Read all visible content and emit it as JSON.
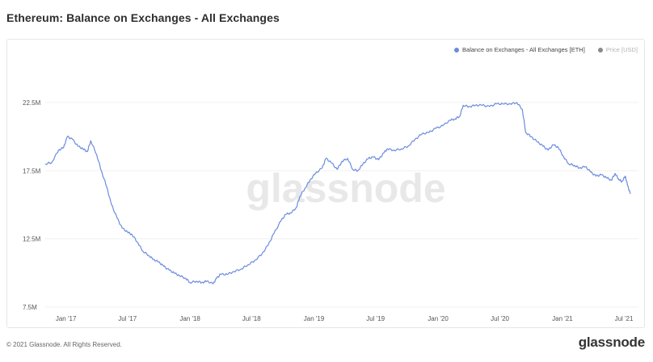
{
  "title": "Ethereum: Balance on Exchanges - All Exchanges",
  "footer": {
    "copyright": "© 2021 Glassnode. All Rights Reserved.",
    "logo": "glassnode"
  },
  "watermark": "glassnode",
  "colors": {
    "series": "#6b8cde",
    "price_dot": "#8a8a8a",
    "grid": "#f0f0f0",
    "tick": "#555555"
  },
  "chart_data": {
    "type": "line",
    "legend_position": "top-right",
    "grid": true,
    "series": [
      {
        "name": "Balance on Exchanges - All Exchanges [ETH]",
        "points": [
          [
            "2016-11-01",
            18.0
          ],
          [
            "2016-11-20",
            18.1
          ],
          [
            "2016-12-10",
            19.0
          ],
          [
            "2016-12-25",
            19.2
          ],
          [
            "2017-01-05",
            20.0
          ],
          [
            "2017-01-20",
            19.8
          ],
          [
            "2017-02-05",
            19.3
          ],
          [
            "2017-02-20",
            19.1
          ],
          [
            "2017-03-05",
            18.9
          ],
          [
            "2017-03-15",
            19.7
          ],
          [
            "2017-04-01",
            18.7
          ],
          [
            "2017-04-15",
            17.5
          ],
          [
            "2017-05-01",
            16.3
          ],
          [
            "2017-05-15",
            15.0
          ],
          [
            "2017-06-01",
            14.0
          ],
          [
            "2017-06-15",
            13.3
          ],
          [
            "2017-07-01",
            13.0
          ],
          [
            "2017-07-15",
            12.8
          ],
          [
            "2017-08-01",
            12.2
          ],
          [
            "2017-08-15",
            11.6
          ],
          [
            "2017-09-01",
            11.3
          ],
          [
            "2017-09-15",
            11.0
          ],
          [
            "2017-10-01",
            10.8
          ],
          [
            "2017-10-15",
            10.5
          ],
          [
            "2017-11-01",
            10.2
          ],
          [
            "2017-11-15",
            10.0
          ],
          [
            "2017-12-01",
            9.8
          ],
          [
            "2017-12-20",
            9.6
          ],
          [
            "2018-01-01",
            9.3
          ],
          [
            "2018-01-20",
            9.4
          ],
          [
            "2018-02-05",
            9.3
          ],
          [
            "2018-02-20",
            9.4
          ],
          [
            "2018-03-10",
            9.2
          ],
          [
            "2018-03-20",
            9.6
          ],
          [
            "2018-04-01",
            9.9
          ],
          [
            "2018-04-20",
            9.9
          ],
          [
            "2018-05-10",
            10.1
          ],
          [
            "2018-06-01",
            10.3
          ],
          [
            "2018-06-20",
            10.6
          ],
          [
            "2018-07-10",
            10.9
          ],
          [
            "2018-08-01",
            11.4
          ],
          [
            "2018-08-20",
            12.1
          ],
          [
            "2018-09-05",
            12.9
          ],
          [
            "2018-09-25",
            13.8
          ],
          [
            "2018-10-10",
            14.3
          ],
          [
            "2018-10-25",
            14.4
          ],
          [
            "2018-11-10",
            14.8
          ],
          [
            "2018-11-20",
            15.6
          ],
          [
            "2018-12-05",
            16.2
          ],
          [
            "2018-12-20",
            16.8
          ],
          [
            "2019-01-05",
            17.3
          ],
          [
            "2019-01-25",
            17.7
          ],
          [
            "2019-02-05",
            18.4
          ],
          [
            "2019-02-20",
            18.1
          ],
          [
            "2019-03-10",
            17.6
          ],
          [
            "2019-03-25",
            18.2
          ],
          [
            "2019-04-10",
            18.4
          ],
          [
            "2019-04-25",
            17.6
          ],
          [
            "2019-05-10",
            17.5
          ],
          [
            "2019-05-25",
            18.0
          ],
          [
            "2019-06-10",
            18.4
          ],
          [
            "2019-06-25",
            18.5
          ],
          [
            "2019-07-10",
            18.3
          ],
          [
            "2019-07-25",
            18.8
          ],
          [
            "2019-08-05",
            19.1
          ],
          [
            "2019-08-25",
            19.0
          ],
          [
            "2019-09-15",
            19.1
          ],
          [
            "2019-10-05",
            19.3
          ],
          [
            "2019-10-25",
            19.8
          ],
          [
            "2019-11-15",
            20.2
          ],
          [
            "2019-12-05",
            20.3
          ],
          [
            "2019-12-25",
            20.6
          ],
          [
            "2020-01-15",
            20.8
          ],
          [
            "2020-02-05",
            21.2
          ],
          [
            "2020-02-20",
            21.3
          ],
          [
            "2020-03-05",
            21.5
          ],
          [
            "2020-03-15",
            22.3
          ],
          [
            "2020-04-01",
            22.2
          ],
          [
            "2020-04-20",
            22.3
          ],
          [
            "2020-05-10",
            22.3
          ],
          [
            "2020-06-01",
            22.2
          ],
          [
            "2020-06-20",
            22.4
          ],
          [
            "2020-07-10",
            22.4
          ],
          [
            "2020-08-01",
            22.4
          ],
          [
            "2020-08-20",
            22.5
          ],
          [
            "2020-09-05",
            22.0
          ],
          [
            "2020-09-15",
            20.3
          ],
          [
            "2020-10-01",
            20.0
          ],
          [
            "2020-10-20",
            19.6
          ],
          [
            "2020-11-05",
            19.3
          ],
          [
            "2020-11-20",
            19.0
          ],
          [
            "2020-12-05",
            19.4
          ],
          [
            "2020-12-20",
            19.2
          ],
          [
            "2021-01-05",
            18.5
          ],
          [
            "2021-01-20",
            18.0
          ],
          [
            "2021-02-05",
            17.9
          ],
          [
            "2021-02-20",
            17.7
          ],
          [
            "2021-03-10",
            17.8
          ],
          [
            "2021-03-25",
            17.4
          ],
          [
            "2021-04-10",
            17.1
          ],
          [
            "2021-04-25",
            17.2
          ],
          [
            "2021-05-10",
            17.0
          ],
          [
            "2021-05-25",
            16.8
          ],
          [
            "2021-06-05",
            17.3
          ],
          [
            "2021-06-15",
            16.9
          ],
          [
            "2021-06-25",
            16.7
          ],
          [
            "2021-07-05",
            17.1
          ],
          [
            "2021-07-12",
            16.4
          ],
          [
            "2021-07-20",
            15.8
          ]
        ]
      },
      {
        "name": "Price [USD]",
        "visible": false
      }
    ],
    "x_ticks": [
      "Jan '17",
      "Jul '17",
      "Jan '18",
      "Jul '18",
      "Jan '19",
      "Jul '19",
      "Jan '20",
      "Jul '20",
      "Jan '21",
      "Jul '21"
    ],
    "x_tick_dates": [
      "2017-01-01",
      "2017-07-01",
      "2018-01-01",
      "2018-07-01",
      "2019-01-01",
      "2019-07-01",
      "2020-01-01",
      "2020-07-01",
      "2021-01-01",
      "2021-07-01"
    ],
    "xlim": [
      "2016-11-01",
      "2021-07-20"
    ],
    "y_ticks": [
      "22.5M",
      "17.5M",
      "12.5M",
      "7.5M"
    ],
    "y_tick_values": [
      22.5,
      17.5,
      12.5,
      7.5
    ],
    "ylim": [
      7.5,
      23.5
    ],
    "y_unit": "M"
  }
}
